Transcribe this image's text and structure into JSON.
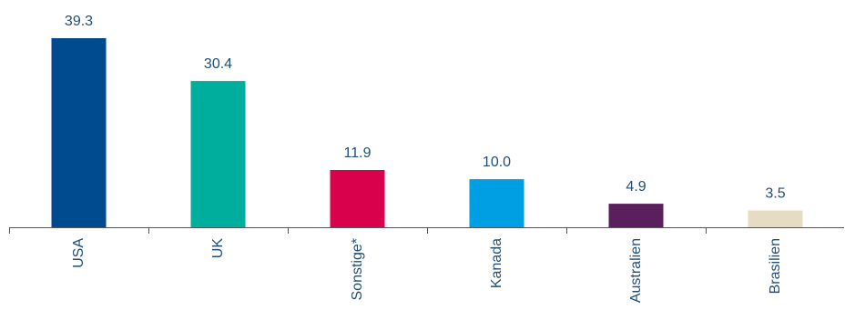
{
  "chart_data": {
    "type": "bar",
    "categories": [
      "USA",
      "UK",
      "Sonstige*",
      "Kanada",
      "Australien",
      "Brasilien"
    ],
    "values": [
      39.3,
      30.4,
      11.9,
      10.0,
      4.9,
      3.5
    ],
    "value_labels": [
      "39.3",
      "30.4",
      "11.9",
      "10.0",
      "4.9",
      "3.5"
    ],
    "colors": [
      "#004a8f",
      "#00ae9e",
      "#d9004c",
      "#009fe3",
      "#5a1f5c",
      "#e5dcc3"
    ],
    "title": "",
    "xlabel": "",
    "ylabel": "",
    "ylim": [
      0,
      39.3
    ],
    "grid": false,
    "legend": "none"
  }
}
